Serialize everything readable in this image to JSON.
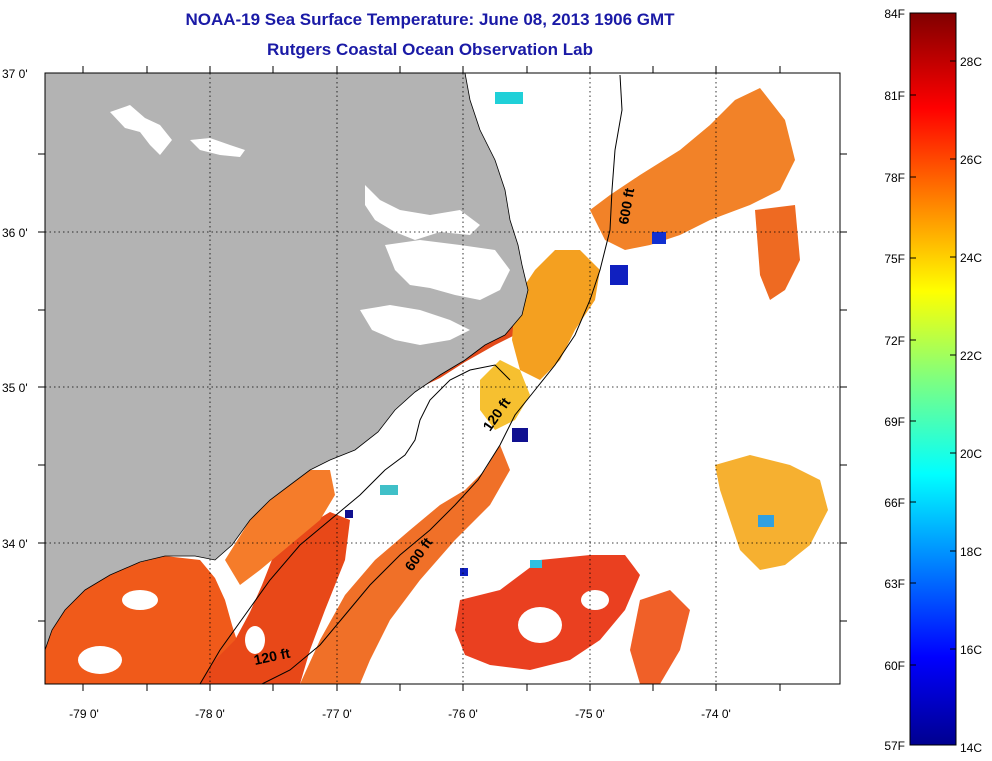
{
  "header": {
    "title": "NOAA-19 Sea Surface Temperature:  June 08, 2013 1906 GMT",
    "subtitle": "Rutgers Coastal Ocean Observation Lab"
  },
  "map": {
    "lat_labels": [
      "37 0'",
      "36 0'",
      "35 0'",
      "34 0'"
    ],
    "lon_labels": [
      "-79 0'",
      "-78 0'",
      "-77 0'",
      "-76 0'",
      "-75 0'",
      "-74 0'"
    ],
    "contour_labels": [
      "600 ft",
      "120 ft",
      "600 ft",
      "120 ft"
    ],
    "colors": {
      "land": "#b3b3b3",
      "no_data": "#ffffff"
    }
  },
  "colorbar": {
    "fahrenheit_labels": [
      "84F",
      "81F",
      "78F",
      "75F",
      "72F",
      "69F",
      "66F",
      "63F",
      "60F",
      "57F"
    ],
    "celsius_labels": [
      "28C",
      "26C",
      "24C",
      "22C",
      "20C",
      "18C",
      "16C",
      "14C"
    ],
    "range_c": [
      14,
      29
    ]
  }
}
